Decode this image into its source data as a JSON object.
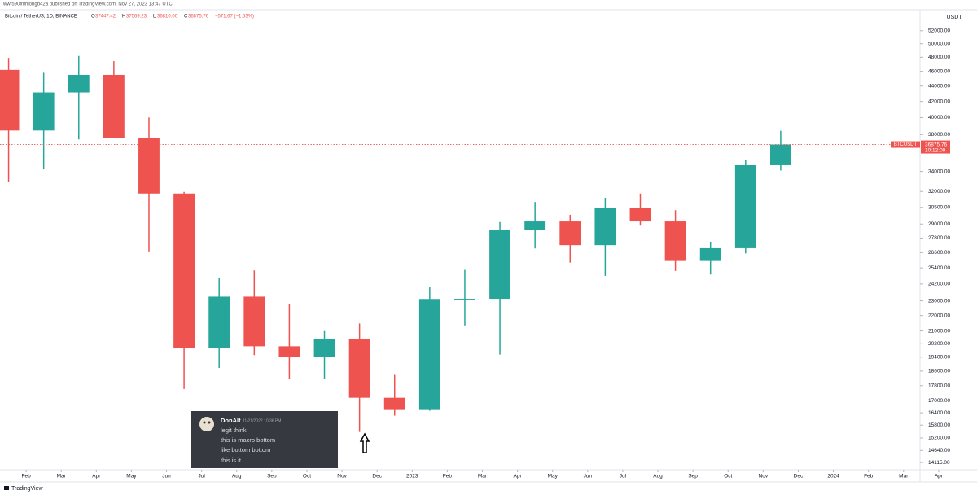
{
  "header": {
    "publisher": "wwf590fnfnlohgb42a published on TradingView.com, Nov 27, 2023 13:47 UTC",
    "symbol": "Bitcoin / TetherUS, 1D, BINANCE",
    "ohlc_legend": [
      {
        "label": "O",
        "value": "37447.42"
      },
      {
        "label": "H",
        "value": "37569.23"
      },
      {
        "label": "L",
        "value": "36810.00"
      },
      {
        "label": "C",
        "value": "36875.76"
      }
    ],
    "change": "−571.67 (−1.53%)"
  },
  "chart_data": {
    "type": "candlestick",
    "log_scale": true,
    "up_color": "#26a69a",
    "down_color": "#ef5350",
    "y_unit": "USDT",
    "symbol_tag": "BTCUSDT",
    "last_price": 36875.76,
    "countdown": "10:12:09",
    "x": [
      "2022-01",
      "2022-02",
      "2022-03",
      "2022-04",
      "2022-05",
      "2022-06",
      "2022-07",
      "2022-08",
      "2022-09",
      "2022-10",
      "2022-11",
      "2022-12",
      "2023-01",
      "2023-02",
      "2023-03",
      "2023-04",
      "2023-05",
      "2023-06",
      "2023-07",
      "2023-08",
      "2023-09",
      "2023-10",
      "2023-11"
    ],
    "open": [
      46200,
      38470,
      43160,
      45510,
      37630,
      31800,
      19940,
      23290,
      20050,
      19420,
      20490,
      17160,
      16540,
      23130,
      23140,
      28460,
      29230,
      27210,
      30470,
      29230,
      25940,
      26960,
      34640
    ],
    "high": [
      47900,
      45800,
      48190,
      47440,
      40020,
      31960,
      24670,
      25210,
      22800,
      20990,
      21480,
      18390,
      23960,
      25250,
      29180,
      31000,
      29820,
      31390,
      31800,
      30240,
      27490,
      35200,
      38430
    ],
    "low": [
      32900,
      34300,
      37450,
      37580,
      26700,
      17620,
      18780,
      19520,
      18150,
      18190,
      15480,
      16260,
      16500,
      21350,
      19550,
      26940,
      25810,
      24800,
      28860,
      25170,
      24900,
      26540,
      34100
    ],
    "close": [
      38470,
      43160,
      45510,
      37630,
      31800,
      19940,
      23290,
      20050,
      19420,
      20490,
      17160,
      16540,
      23130,
      23140,
      28460,
      29230,
      27210,
      30470,
      29230,
      25940,
      26960,
      34640,
      36875.76
    ],
    "xlim": [
      "2022-01",
      "2024-05"
    ],
    "xticks": [
      {
        "value": "2022-02",
        "label": "Feb"
      },
      {
        "value": "2022-03",
        "label": "Mar"
      },
      {
        "value": "2022-04",
        "label": "Apr"
      },
      {
        "value": "2022-05",
        "label": "May"
      },
      {
        "value": "2022-06",
        "label": "Jun"
      },
      {
        "value": "2022-07",
        "label": "Jul"
      },
      {
        "value": "2022-08",
        "label": "Aug"
      },
      {
        "value": "2022-09",
        "label": "Sep"
      },
      {
        "value": "2022-10",
        "label": "Oct"
      },
      {
        "value": "2022-11",
        "label": "Nov"
      },
      {
        "value": "2022-12",
        "label": "Dec"
      },
      {
        "value": "2023-01",
        "label": "2023"
      },
      {
        "value": "2023-02",
        "label": "Feb"
      },
      {
        "value": "2023-03",
        "label": "Mar"
      },
      {
        "value": "2023-04",
        "label": "Apr"
      },
      {
        "value": "2023-05",
        "label": "May"
      },
      {
        "value": "2023-06",
        "label": "Jun"
      },
      {
        "value": "2023-07",
        "label": "Jul"
      },
      {
        "value": "2023-08",
        "label": "Aug"
      },
      {
        "value": "2023-09",
        "label": "Sep"
      },
      {
        "value": "2023-10",
        "label": "Oct"
      },
      {
        "value": "2023-11",
        "label": "Nov"
      },
      {
        "value": "2023-12",
        "label": "Dec"
      },
      {
        "value": "2024-01",
        "label": "2024"
      },
      {
        "value": "2024-02",
        "label": "Feb"
      },
      {
        "value": "2024-03",
        "label": "Mar"
      },
      {
        "value": "2024-04",
        "label": "Apr"
      }
    ],
    "ylim": [
      13810,
      55400
    ],
    "yticks": [
      {
        "value": 52000,
        "label": "52000.00"
      },
      {
        "value": 50000,
        "label": "50000.00"
      },
      {
        "value": 48000,
        "label": "48000.00"
      },
      {
        "value": 46000,
        "label": "46000.00"
      },
      {
        "value": 44000,
        "label": "44000.00"
      },
      {
        "value": 42000,
        "label": "42000.00"
      },
      {
        "value": 40000,
        "label": "40000.00"
      },
      {
        "value": 38000,
        "label": "38000.00"
      },
      {
        "value": 34000,
        "label": "34000.00"
      },
      {
        "value": 32000,
        "label": "32000.00"
      },
      {
        "value": 30500,
        "label": "30500.00"
      },
      {
        "value": 29000,
        "label": "29000.00"
      },
      {
        "value": 27800,
        "label": "27800.00"
      },
      {
        "value": 26600,
        "label": "26600.00"
      },
      {
        "value": 25400,
        "label": "25400.00"
      },
      {
        "value": 24200,
        "label": "24200.00"
      },
      {
        "value": 23000,
        "label": "23000.00"
      },
      {
        "value": 22000,
        "label": "22000.00"
      },
      {
        "value": 21000,
        "label": "21000.00"
      },
      {
        "value": 20200,
        "label": "20200.00"
      },
      {
        "value": 19400,
        "label": "19400.00"
      },
      {
        "value": 18600,
        "label": "18600.00"
      },
      {
        "value": 17800,
        "label": "17800.00"
      },
      {
        "value": 17000,
        "label": "17000.00"
      },
      {
        "value": 16400,
        "label": "16400.00"
      },
      {
        "value": 15800,
        "label": "15800.00"
      },
      {
        "value": 15200,
        "label": "15200.00"
      },
      {
        "value": 14640,
        "label": "14640.00"
      },
      {
        "value": 14115,
        "label": "14115.00"
      }
    ]
  },
  "message": {
    "author": "DonAlt",
    "time": "11/21/2022 10:36 PM",
    "lines": [
      "legit think",
      "this is macro bottom",
      "like bottom bottom",
      "this is it"
    ]
  },
  "footer": {
    "brand": "TradingView"
  }
}
